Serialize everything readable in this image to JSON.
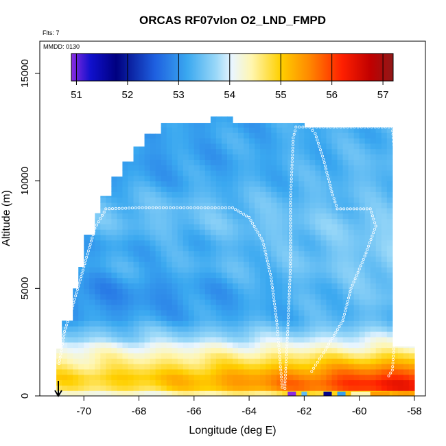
{
  "chart_data": {
    "type": "heatmap",
    "title": "ORCAS RF07vlon O2_LND_FMPD",
    "flts_label": "Flts: 7",
    "date_label": "MMDD: 0130",
    "xlabel": "Longitude (deg E)",
    "ylabel": "Altitude (m)",
    "xlim": [
      -71.6,
      -57.6
    ],
    "ylim": [
      0,
      16500
    ],
    "x_ticks": [
      -70,
      -68,
      -66,
      -64,
      -62,
      -60,
      -58
    ],
    "y_ticks": [
      0,
      5000,
      10000,
      15000
    ],
    "colorbar": {
      "ticks": [
        51,
        52,
        53,
        54,
        55,
        56,
        57
      ],
      "range": [
        50.9,
        57.2
      ],
      "colors": [
        "#8a2be2",
        "#1010cc",
        "#000080",
        "#1e60e0",
        "#3aa8f0",
        "#9ad8f8",
        "#eaf6ff",
        "#fff6b0",
        "#ffd000",
        "#ff8800",
        "#ff2000",
        "#c00000",
        "#901818"
      ],
      "stops": [
        0.0,
        0.06,
        0.14,
        0.26,
        0.36,
        0.45,
        0.5,
        0.56,
        0.65,
        0.74,
        0.84,
        0.93,
        1.0
      ]
    },
    "flight_track_description": "white circles trace the aircraft profile",
    "surface_arrow_longitude": -70.9,
    "cruise_altitude_m": 12500,
    "field_extent": {
      "lon_start": -71.0,
      "lon_end": -58.0,
      "cell_lon_width": 0.2,
      "cell_alt_height": 250
    },
    "field_profile": {
      "altitudes_m": [
        0,
        300,
        600,
        900,
        1200,
        1500,
        1800,
        2100,
        2400,
        2700,
        3000,
        3300,
        3600,
        4000,
        4500,
        5000,
        6000,
        7000,
        8000,
        9000,
        10000,
        11000,
        12000,
        13000
      ],
      "west_values": [
        53.9,
        54.6,
        54.8,
        54.9,
        54.7,
        54.5,
        54.4,
        54.2,
        54.0,
        53.6,
        53.5,
        53.3,
        53.1,
        53.0,
        52.9,
        52.9,
        53.2,
        53.1,
        53.4,
        53.4,
        53.1,
        53.0,
        53.1,
        53.0
      ],
      "east_values": [
        54.5,
        56.2,
        56.3,
        56.0,
        55.7,
        55.3,
        54.9,
        54.5,
        54.2,
        54.0,
        53.7,
        53.5,
        53.4,
        53.4,
        53.5,
        53.5,
        53.6,
        53.6,
        53.6,
        53.4,
        53.4,
        53.4,
        53.3,
        53.3
      ]
    },
    "top_envelope": [
      {
        "lon": -71.0,
        "alt": 2200
      },
      {
        "lon": -70.8,
        "alt": 2200
      },
      {
        "lon": -70.8,
        "alt": 3500
      },
      {
        "lon": -70.4,
        "alt": 3500
      },
      {
        "lon": -70.4,
        "alt": 5000
      },
      {
        "lon": -70.1,
        "alt": 6000
      },
      {
        "lon": -69.9,
        "alt": 7500
      },
      {
        "lon": -69.6,
        "alt": 8500
      },
      {
        "lon": -69.3,
        "alt": 9300
      },
      {
        "lon": -68.9,
        "alt": 10200
      },
      {
        "lon": -68.6,
        "alt": 10900
      },
      {
        "lon": -68.2,
        "alt": 11600
      },
      {
        "lon": -67.8,
        "alt": 12200
      },
      {
        "lon": -67.2,
        "alt": 12700
      },
      {
        "lon": -65.3,
        "alt": 12700
      },
      {
        "lon": -65.3,
        "alt": 13000
      },
      {
        "lon": -64.6,
        "alt": 13000
      },
      {
        "lon": -64.6,
        "alt": 12700
      },
      {
        "lon": -62.0,
        "alt": 12700
      },
      {
        "lon": -62.0,
        "alt": 12500
      },
      {
        "lon": -58.8,
        "alt": 12500
      },
      {
        "lon": -58.8,
        "alt": 2300
      },
      {
        "lon": -58.0,
        "alt": 1800
      },
      {
        "lon": -58.0,
        "alt": 300
      }
    ],
    "track_segments": [
      {
        "points": [
          [
            -70.9,
            1500
          ],
          [
            -70.7,
            3000
          ],
          [
            -70.4,
            4200
          ],
          [
            -70.0,
            6000
          ],
          [
            -69.6,
            7800
          ],
          [
            -69.2,
            8700
          ],
          [
            -68.0,
            8750
          ],
          [
            -64.6,
            8750
          ],
          [
            -64.0,
            8300
          ],
          [
            -63.5,
            7200
          ],
          [
            -63.2,
            5500
          ],
          [
            -63.0,
            3500
          ],
          [
            -62.9,
            2000
          ],
          [
            -62.8,
            400
          ],
          [
            -62.6,
            300
          ]
        ]
      },
      {
        "points": [
          [
            -62.7,
            500
          ],
          [
            -62.6,
            3000
          ],
          [
            -62.5,
            6000
          ],
          [
            -62.5,
            9000
          ],
          [
            -62.4,
            12000
          ],
          [
            -62.3,
            12500
          ],
          [
            -58.8,
            12500
          ],
          [
            -58.7,
            11000
          ],
          [
            -58.6,
            8000
          ],
          [
            -58.6,
            5000
          ],
          [
            -58.7,
            3000
          ],
          [
            -58.8,
            1200
          ],
          [
            -59.0,
            800
          ]
        ]
      },
      {
        "points": [
          [
            -61.8,
            12500
          ],
          [
            -61.6,
            12200
          ],
          [
            -61.3,
            11000
          ],
          [
            -61.0,
            9500
          ],
          [
            -60.8,
            8700
          ],
          [
            -59.6,
            8700
          ],
          [
            -59.4,
            7900
          ],
          [
            -59.8,
            6500
          ],
          [
            -60.3,
            5000
          ],
          [
            -60.6,
            3500
          ],
          [
            -61.3,
            2000
          ],
          [
            -61.8,
            1000
          ]
        ]
      }
    ],
    "surface_anomaly_patches": [
      {
        "lon_start": -62.6,
        "lon_end": -62.3,
        "value": 50.9
      },
      {
        "lon_start": -62.1,
        "lon_end": -61.9,
        "value": 53.4
      },
      {
        "lon_start": -61.3,
        "lon_end": -61.0,
        "value": 51.7
      },
      {
        "lon_start": -60.8,
        "lon_end": -60.5,
        "value": 53.1
      },
      {
        "lon_start": -60.3,
        "lon_end": -59.6,
        "value": 54.4
      },
      {
        "lon_start": -59.6,
        "lon_end": -58.9,
        "value": 55.4
      }
    ]
  }
}
